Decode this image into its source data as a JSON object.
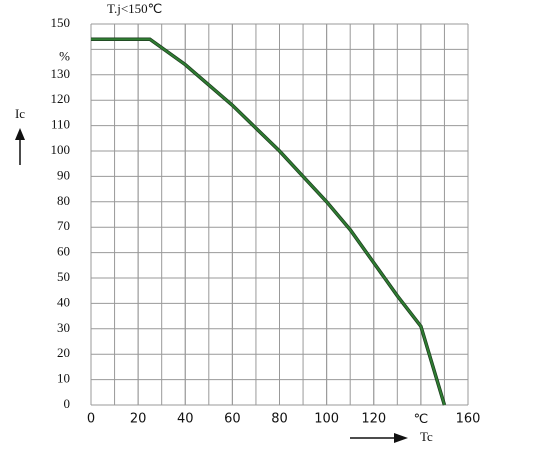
{
  "chart_data": {
    "type": "line",
    "title": "T.j<150℃",
    "xlabel": "Tc",
    "ylabel": "Ic",
    "x": [
      0,
      25,
      40,
      60,
      80,
      90,
      100,
      110,
      120,
      130,
      140,
      150
    ],
    "series": [
      {
        "color": "#2f7d32",
        "values": [
          144,
          144,
          134,
          118,
          100,
          90,
          80,
          69,
          56,
          43,
          31,
          0
        ]
      }
    ],
    "xlim": [
      0,
      160
    ],
    "xticks": [
      0,
      20,
      40,
      60,
      80,
      100,
      120,
      {
        "value": 140,
        "label": "℃"
      },
      160
    ],
    "ylim": [
      0,
      150
    ],
    "yticks": [
      0,
      10,
      20,
      30,
      40,
      50,
      60,
      70,
      80,
      90,
      100,
      110,
      120,
      130,
      {
        "value": 140,
        "label": "%"
      },
      150
    ],
    "grid": true
  }
}
